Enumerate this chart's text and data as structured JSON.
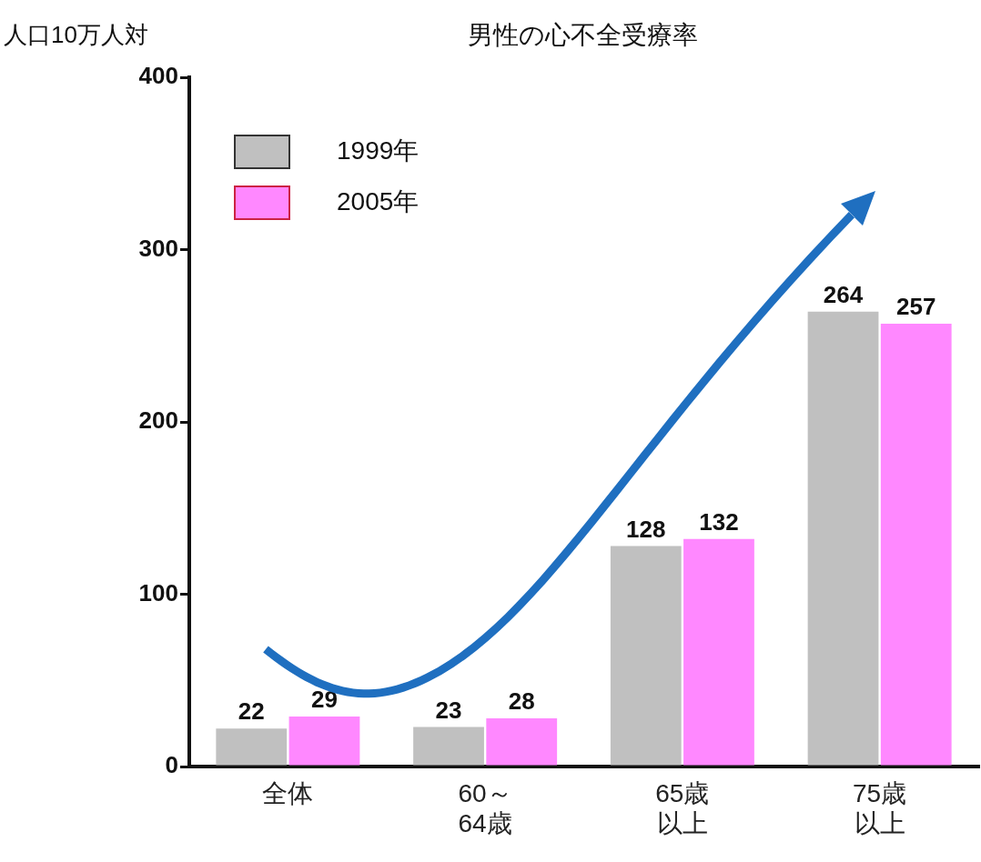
{
  "chart_data": {
    "type": "bar",
    "title": "男性の心不全受療率",
    "ylabel": "人口10万人対",
    "categories": [
      "全体",
      "60～64歳",
      "65歳以上",
      "75歳以上"
    ],
    "series": [
      {
        "name": "1999年",
        "color": "#c0c0c0",
        "values": [
          22,
          23,
          128,
          264
        ]
      },
      {
        "name": "2005年",
        "color": "#ff88ff",
        "values": [
          29,
          28,
          132,
          257
        ]
      }
    ],
    "ylim": [
      0,
      400
    ],
    "yticks": [
      0,
      100,
      200,
      300,
      400
    ],
    "grid": false,
    "legend": "top left",
    "data_labels": true
  }
}
